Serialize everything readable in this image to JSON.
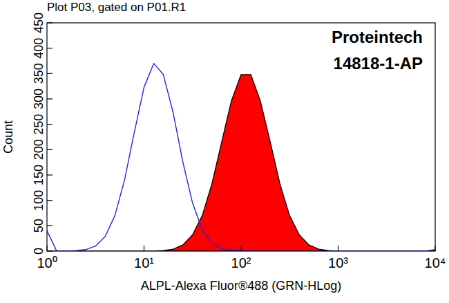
{
  "chart_data": {
    "type": "line",
    "title": "Plot P03, gated on P01.R1",
    "annotations": [
      "Proteintech",
      "14818-1-AP"
    ],
    "xlabel": "ALPL-Alexa Fluor®488 (GRN-HLog)",
    "ylabel": "Count",
    "log": "x",
    "grid": false,
    "xlim": [
      1,
      10000
    ],
    "ylim": [
      0,
      450
    ],
    "xticks": [
      {
        "value": 1,
        "label": "10⁰"
      },
      {
        "value": 10,
        "label": "10¹"
      },
      {
        "value": 100,
        "label": "10²"
      },
      {
        "value": 1000,
        "label": "10³"
      },
      {
        "value": 10000,
        "label": "10⁴"
      }
    ],
    "yticks": [
      0,
      50,
      100,
      150,
      200,
      250,
      300,
      350,
      400,
      450
    ],
    "x": [
      1,
      1.26,
      1.58,
      2,
      2.51,
      3.16,
      3.98,
      5.01,
      6.31,
      7.94,
      10,
      12.6,
      15.8,
      20,
      25.1,
      31.6,
      39.8,
      50.1,
      63.1,
      79.4,
      100,
      126,
      158,
      200,
      251,
      316,
      398,
      501,
      631,
      794,
      1000,
      1259,
      1585,
      1995,
      2512,
      3162,
      3981,
      5012,
      6310,
      7943,
      10000
    ],
    "series": [
      {
        "type": "line",
        "color": "#2424e0",
        "values": [
          40,
          0,
          0,
          1,
          3,
          10,
          29,
          70,
          141,
          234,
          323,
          370,
          348,
          272,
          176,
          95,
          42,
          15,
          5,
          2,
          1,
          0,
          0,
          0,
          0,
          0,
          0,
          0,
          0,
          0,
          0,
          0,
          0,
          0,
          0,
          0,
          0,
          0,
          0,
          0,
          3
        ]
      },
      {
        "type": "area",
        "color": "#ff0000",
        "values": [
          0,
          0,
          0,
          0,
          0,
          0,
          0,
          0,
          0,
          0,
          0,
          0,
          1,
          4,
          12,
          32,
          70,
          133,
          215,
          296,
          348,
          348,
          296,
          215,
          133,
          70,
          32,
          12,
          4,
          1,
          0,
          0,
          0,
          0,
          0,
          0,
          0,
          0,
          0,
          0,
          2
        ]
      }
    ]
  }
}
